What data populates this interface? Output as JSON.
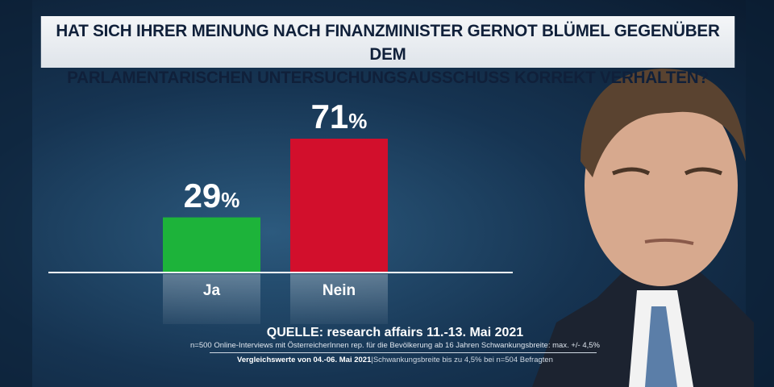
{
  "title_lines": [
    "HAT SICH IHRER MEINUNG NACH FINANZMINISTER GERNOT BLÜMEL GEGENÜBER DEM",
    "PARLAMENTARISCHEN UNTERSUCHUNGSAUSSCHUSS KORREKT VERHALTEN?"
  ],
  "chart_data": {
    "type": "bar",
    "categories": [
      "Ja",
      "Nein"
    ],
    "values": [
      29,
      71
    ],
    "value_labels": [
      "29",
      "71"
    ],
    "unit": "%",
    "colors": [
      "#1db33a",
      "#d20f2c"
    ],
    "ylim": [
      0,
      100
    ],
    "grid": false
  },
  "source": {
    "main": "QUELLE: research affairs 11.-13. Mai 2021",
    "detail": "n=500 Online-Interviews mit ÖsterreicherInnen rep. für die Bevölkerung ab 16 Jahren  Schwankungsbreite: max. +/- 4,5%",
    "compare_bold": "Vergleichswerte von  04.-06. Mai 2021",
    "compare_rest": "Schwankungsbreite bis zu 4,5% bei n=504 Befragten"
  }
}
